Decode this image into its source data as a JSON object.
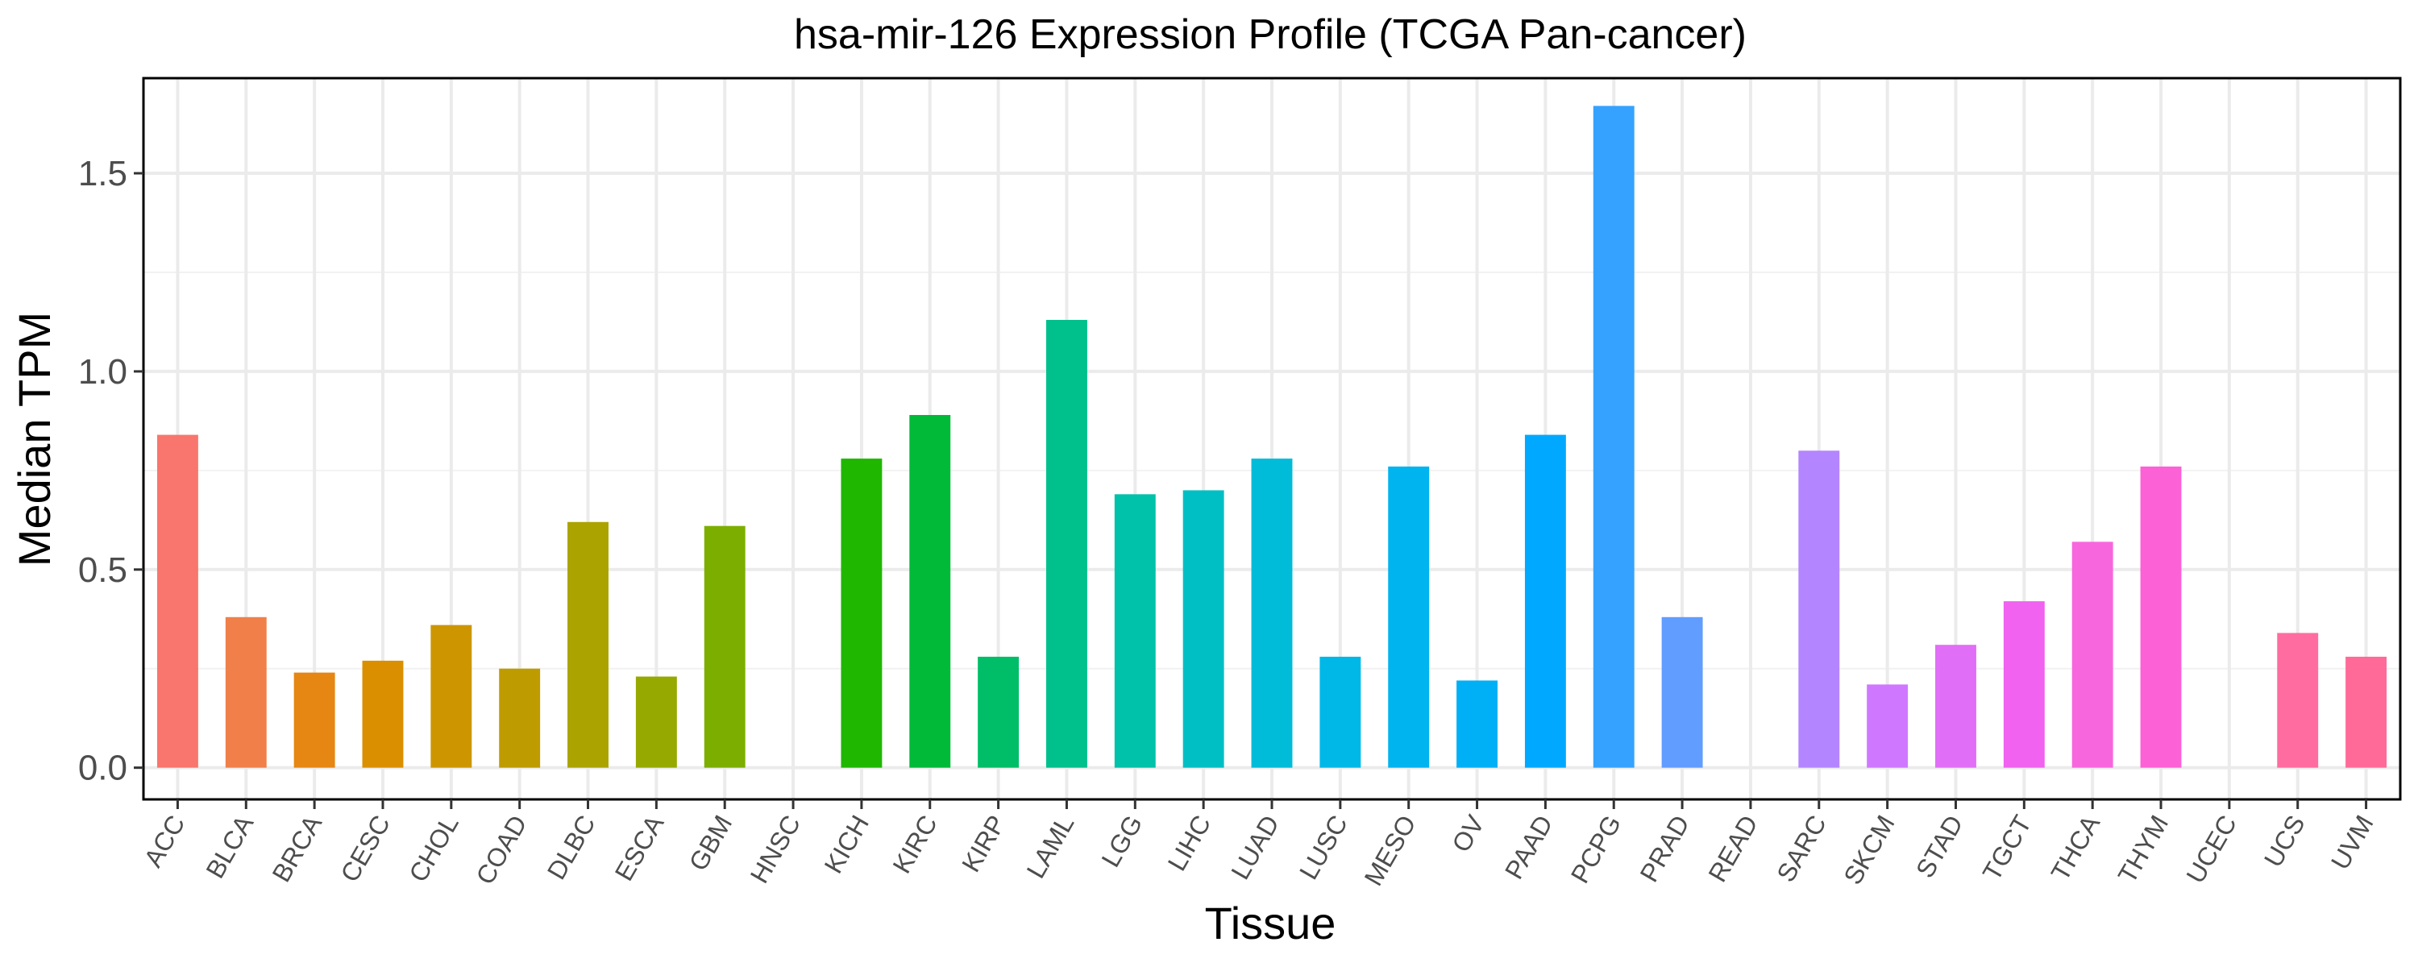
{
  "chart_data": {
    "type": "bar",
    "title": "hsa-mir-126 Expression Profile (TCGA Pan-cancer)",
    "xlabel": "Tissue",
    "ylabel": "Median TPM",
    "ylim": [
      -0.08,
      1.74
    ],
    "yticks": [
      0.0,
      0.5,
      1.0,
      1.5
    ],
    "ytick_labels": [
      "0.0",
      "0.5",
      "1.0",
      "1.5"
    ],
    "grid": true,
    "legend": "none",
    "categories": [
      "ACC",
      "BLCA",
      "BRCA",
      "CESC",
      "CHOL",
      "COAD",
      "DLBC",
      "ESCA",
      "GBM",
      "HNSC",
      "KICH",
      "KIRC",
      "KIRP",
      "LAML",
      "LGG",
      "LIHC",
      "LUAD",
      "LUSC",
      "MESO",
      "OV",
      "PAAD",
      "PCPG",
      "PRAD",
      "READ",
      "SARC",
      "SKCM",
      "STAD",
      "TGCT",
      "THCA",
      "THYM",
      "UCEC",
      "UCS",
      "UVM"
    ],
    "values": [
      0.84,
      0.38,
      0.24,
      0.27,
      0.36,
      0.25,
      0.62,
      0.23,
      0.61,
      0.0,
      0.78,
      0.89,
      0.28,
      1.13,
      0.69,
      0.7,
      0.78,
      0.28,
      0.76,
      0.22,
      0.84,
      1.67,
      0.38,
      0.0,
      0.8,
      0.21,
      0.31,
      0.42,
      0.57,
      0.76,
      0.0,
      0.34,
      0.28
    ],
    "colors": [
      "#F8766D",
      "#F07F4A",
      "#E68613",
      "#DA8F00",
      "#CD9600",
      "#BE9C00",
      "#ABA300",
      "#96A900",
      "#7CAE00",
      "#5BB300",
      "#1FB700",
      "#00BA38",
      "#00BE67",
      "#00C08B",
      "#00C1A9",
      "#00BFC4",
      "#00BCD8",
      "#00B8E7",
      "#00B4F0",
      "#00B0F6",
      "#00A9FF",
      "#35A2FF",
      "#619CFF",
      "#8495FF",
      "#B385FF",
      "#CF78FF",
      "#E16EF6",
      "#F062EF",
      "#F866DD",
      "#FC61D5",
      "#FF62BC",
      "#FF6C9F",
      "#FF6A98"
    ]
  }
}
